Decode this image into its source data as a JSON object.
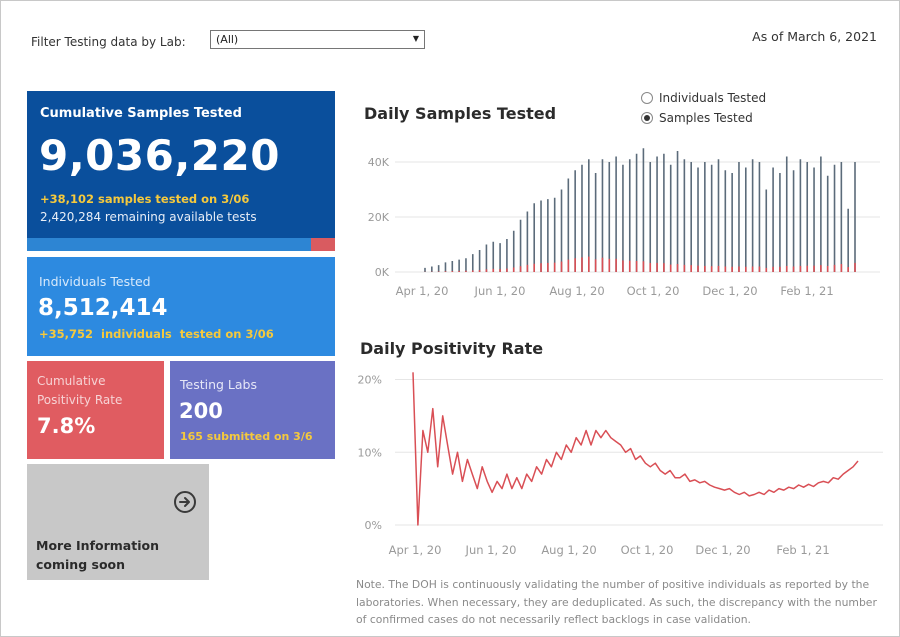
{
  "filter": {
    "label": "Filter Testing data by Lab:",
    "selected": "(All)"
  },
  "as_of": "As of March 6, 2021",
  "cards": {
    "cumulative": {
      "title": "Cumulative Samples Tested",
      "value": "9,036,220",
      "today": "+38,102 samples tested on 3/06",
      "remaining": "2,420,284 remaining available tests",
      "used_fraction": 0.079
    },
    "individuals": {
      "title": "Individuals Tested",
      "value": "8,512,414",
      "today": "+35,752  individuals  tested on 3/06"
    },
    "positivity": {
      "title": "Cumulative Positivity Rate",
      "value": "7.8%"
    },
    "labs": {
      "title": "Testing Labs",
      "value": "200",
      "today": "165 submitted on 3/6"
    },
    "more": {
      "text": "More Information coming soon",
      "icon": "arrow-circle-right-icon"
    }
  },
  "toggle": {
    "options": [
      "Individuals Tested",
      "Samples Tested"
    ],
    "selected": "Samples Tested"
  },
  "note": "Note. The DOH is continuously validating the number of positive individuals as reported by the laboratories. When necessary, they are deduplicated. As such, the discrepancy with the number of confirmed cases do not necessarily reflect backlogs in case validation.",
  "colors": {
    "dark_blue": "#0a4f9c",
    "blue": "#2d8ae0",
    "red": "#e05c61",
    "purple": "#6a71c4",
    "gray": "#c8c8c8",
    "yellow": "#f5c93d",
    "bar": "#5b6b7a",
    "line": "#d94f55"
  },
  "chart_data": [
    {
      "type": "bar",
      "title": "Daily Samples Tested",
      "x_ticks": [
        "Apr 1, 20",
        "Jun 1, 20",
        "Aug 1, 20",
        "Oct 1, 20",
        "Dec 1, 20",
        "Feb 1, 21"
      ],
      "y_ticks": [
        "0K",
        "20K",
        "40K"
      ],
      "ylim": [
        0,
        48000
      ],
      "grid": true,
      "series": [
        {
          "values": [
            1500,
            2000,
            2500,
            3500,
            4000,
            4500,
            5000,
            6500,
            8000,
            10000,
            11000,
            10500,
            12000,
            15000,
            19000,
            22000,
            25000,
            26000,
            26500,
            27000,
            30000,
            34000,
            37000,
            39000,
            41000,
            36000,
            41000,
            40000,
            42000,
            39000,
            41000,
            43000,
            45000,
            40000,
            42000,
            43000,
            39000,
            44000,
            41000,
            40000,
            38000,
            40000,
            39000,
            41000,
            37000,
            36000,
            40000,
            38000,
            41000,
            40000,
            30000,
            38000,
            36000,
            42000,
            37000,
            41000,
            40000,
            38000,
            42000,
            35000,
            39000,
            40000,
            23000,
            40000
          ]
        },
        {
          "values": [
            80,
            120,
            170,
            270,
            340,
            410,
            460,
            560,
            680,
            980,
            1150,
            1080,
            1250,
            1650,
            2100,
            2600,
            3000,
            3200,
            3300,
            3400,
            3800,
            4500,
            5000,
            5300,
            5600,
            4600,
            5200,
            4800,
            4800,
            4200,
            4100,
            4000,
            3900,
            3300,
            3300,
            3200,
            2700,
            2900,
            2600,
            2500,
            2300,
            2200,
            2100,
            2200,
            2000,
            1900,
            2000,
            1900,
            2000,
            2000,
            1500,
            1900,
            1900,
            2200,
            2000,
            2200,
            2300,
            2300,
            2500,
            2200,
            2600,
            2900,
            1800,
            3300
          ]
        }
      ]
    },
    {
      "type": "line",
      "title": "Daily Positivity Rate",
      "x_ticks": [
        "Apr 1, 20",
        "Jun 1, 20",
        "Aug 1, 20",
        "Oct 1, 20",
        "Dec 1, 20",
        "Feb 1, 21"
      ],
      "y_ticks": [
        "0%",
        "10%",
        "20%"
      ],
      "ylim": [
        0,
        22
      ],
      "grid": true,
      "series": [
        {
          "values": [
            21,
            0,
            13,
            10,
            16,
            8,
            15,
            11,
            7,
            10,
            6,
            9,
            7,
            5,
            8,
            6,
            4.5,
            6,
            5,
            7,
            5,
            6.5,
            5,
            7,
            6,
            8,
            7,
            9,
            8,
            10,
            9,
            11,
            10,
            12,
            11,
            13,
            11,
            13,
            12,
            13,
            12,
            11.5,
            11,
            10,
            10.5,
            9,
            9.5,
            8.5,
            8,
            8.5,
            7.5,
            7,
            7.5,
            6.5,
            6.5,
            7,
            6,
            6.2,
            5.8,
            6,
            5.5,
            5.2,
            5,
            4.8,
            5,
            4.5,
            4.2,
            4.5,
            4,
            4.2,
            4.5,
            4.2,
            4.8,
            4.5,
            5,
            4.8,
            5.2,
            5,
            5.5,
            5.2,
            5.6,
            5.3,
            5.8,
            6,
            5.8,
            6.5,
            6.3,
            7,
            7.5,
            8,
            8.8
          ]
        }
      ]
    }
  ]
}
